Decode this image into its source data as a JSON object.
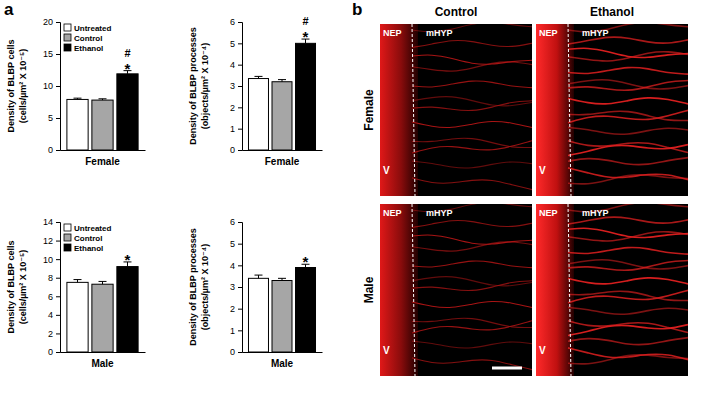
{
  "chart_data": [
    {
      "type": "bar",
      "categories": [
        "Female"
      ],
      "y_label": [
        "Density of BLBP cells",
        "(cells/µm² X 10⁻⁵)"
      ],
      "ylim": [
        0,
        20
      ],
      "yticks": [
        0,
        5,
        10,
        15,
        20
      ],
      "legend": "top-left",
      "series": [
        {
          "name": "Untreated",
          "color": "#ffffff",
          "values": [
            7.9
          ],
          "errors": [
            0.2
          ]
        },
        {
          "name": "Control",
          "color": "#a6a6a6",
          "values": [
            7.8
          ],
          "errors": [
            0.2
          ]
        },
        {
          "name": "Ethanol",
          "color": "#000000",
          "values": [
            11.9
          ],
          "errors": [
            0.5
          ],
          "annotations": [
            "#",
            "*"
          ]
        }
      ]
    },
    {
      "type": "bar",
      "categories": [
        "Female"
      ],
      "y_label": [
        "Density of BLBP processes",
        "(objects/µm² X 10⁻⁴)"
      ],
      "ylim": [
        0,
        6
      ],
      "yticks": [
        0,
        1,
        2,
        3,
        4,
        5,
        6
      ],
      "series": [
        {
          "color": "#ffffff",
          "values": [
            3.35
          ],
          "errors": [
            0.1
          ]
        },
        {
          "color": "#a6a6a6",
          "values": [
            3.2
          ],
          "errors": [
            0.1
          ]
        },
        {
          "color": "#000000",
          "values": [
            5.0
          ],
          "errors": [
            0.2
          ],
          "annotations": [
            "#",
            "*"
          ]
        }
      ]
    },
    {
      "type": "bar",
      "categories": [
        "Male"
      ],
      "y_label": [
        "Density of BLBP cells",
        "(cells/µm² X 10⁻⁵)"
      ],
      "ylim": [
        0,
        14
      ],
      "yticks": [
        0,
        2,
        4,
        6,
        8,
        10,
        12,
        14
      ],
      "legend": "top-left",
      "series": [
        {
          "name": "Untreated",
          "color": "#ffffff",
          "values": [
            7.5
          ],
          "errors": [
            0.3
          ]
        },
        {
          "name": "Control",
          "color": "#a6a6a6",
          "values": [
            7.3
          ],
          "errors": [
            0.3
          ]
        },
        {
          "name": "Ethanol",
          "color": "#000000",
          "values": [
            9.2
          ],
          "errors": [
            0.5
          ],
          "annotations": [
            "*"
          ]
        }
      ]
    },
    {
      "type": "bar",
      "categories": [
        "Male"
      ],
      "y_label": [
        "Density of BLBP processes",
        "(objects/µm² X 10⁻⁴)"
      ],
      "ylim": [
        0,
        6
      ],
      "yticks": [
        0,
        1,
        2,
        3,
        4,
        5,
        6
      ],
      "series": [
        {
          "color": "#ffffff",
          "values": [
            3.4
          ],
          "errors": [
            0.15
          ]
        },
        {
          "color": "#a6a6a6",
          "values": [
            3.3
          ],
          "errors": [
            0.1
          ]
        },
        {
          "color": "#000000",
          "values": [
            3.9
          ],
          "errors": [
            0.15
          ],
          "annotations": [
            "*"
          ]
        }
      ]
    }
  ],
  "panel_labels": [
    "a",
    "b"
  ],
  "micrographs": {
    "columns": [
      "Control",
      "Ethanol"
    ],
    "rows": [
      "Female",
      "Male"
    ],
    "region_labels": [
      "NEP",
      "mHYP"
    ],
    "ventricle_label": "V"
  }
}
